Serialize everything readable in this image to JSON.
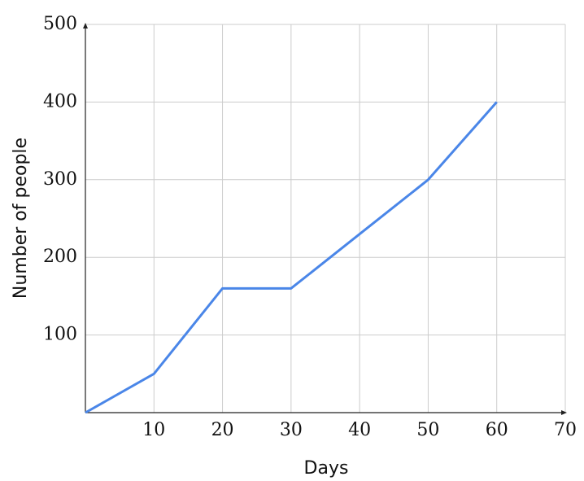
{
  "chart_data": {
    "type": "line",
    "x_label": "Days",
    "y_label": "Number of people",
    "x": [
      0,
      10,
      20,
      30,
      40,
      50,
      60
    ],
    "series": [
      {
        "color": "#4a86e8",
        "values": [
          0,
          50,
          160,
          160,
          230,
          300,
          400
        ]
      }
    ],
    "xlim": [
      0,
      70
    ],
    "xticks": [
      10,
      20,
      30,
      40,
      50,
      60,
      70
    ],
    "ylim": [
      0,
      500
    ],
    "yticks": [
      100,
      200,
      300,
      400,
      500
    ],
    "grid": true
  }
}
